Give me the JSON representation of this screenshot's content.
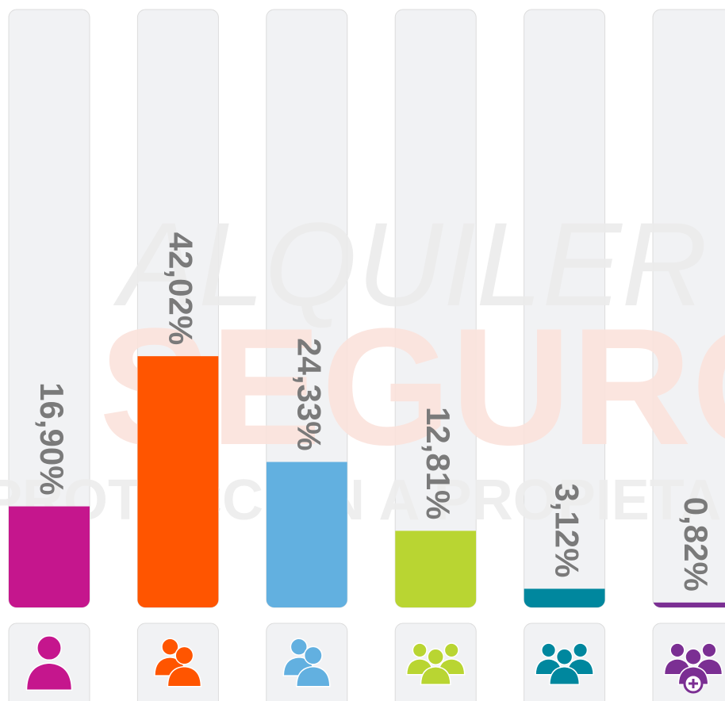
{
  "chart_data": {
    "type": "bar",
    "categories": [
      null,
      null,
      null,
      null,
      null,
      null
    ],
    "values": [
      16.9,
      42.02,
      24.33,
      12.81,
      3.12,
      0.82
    ],
    "value_labels": [
      "16,90%",
      "42,02%",
      "24,33%",
      "12,81%",
      "3,12%",
      "0,82%"
    ],
    "colors": [
      "#c5168d",
      "#ff5500",
      "#62b0e0",
      "#b9d532",
      "#00879e",
      "#7b2f93"
    ],
    "ylim": [
      0,
      100
    ],
    "watermark": [
      "ALQUILER",
      "SEGURO",
      "PROTECCIÓN A PROPIETARIOS"
    ]
  }
}
